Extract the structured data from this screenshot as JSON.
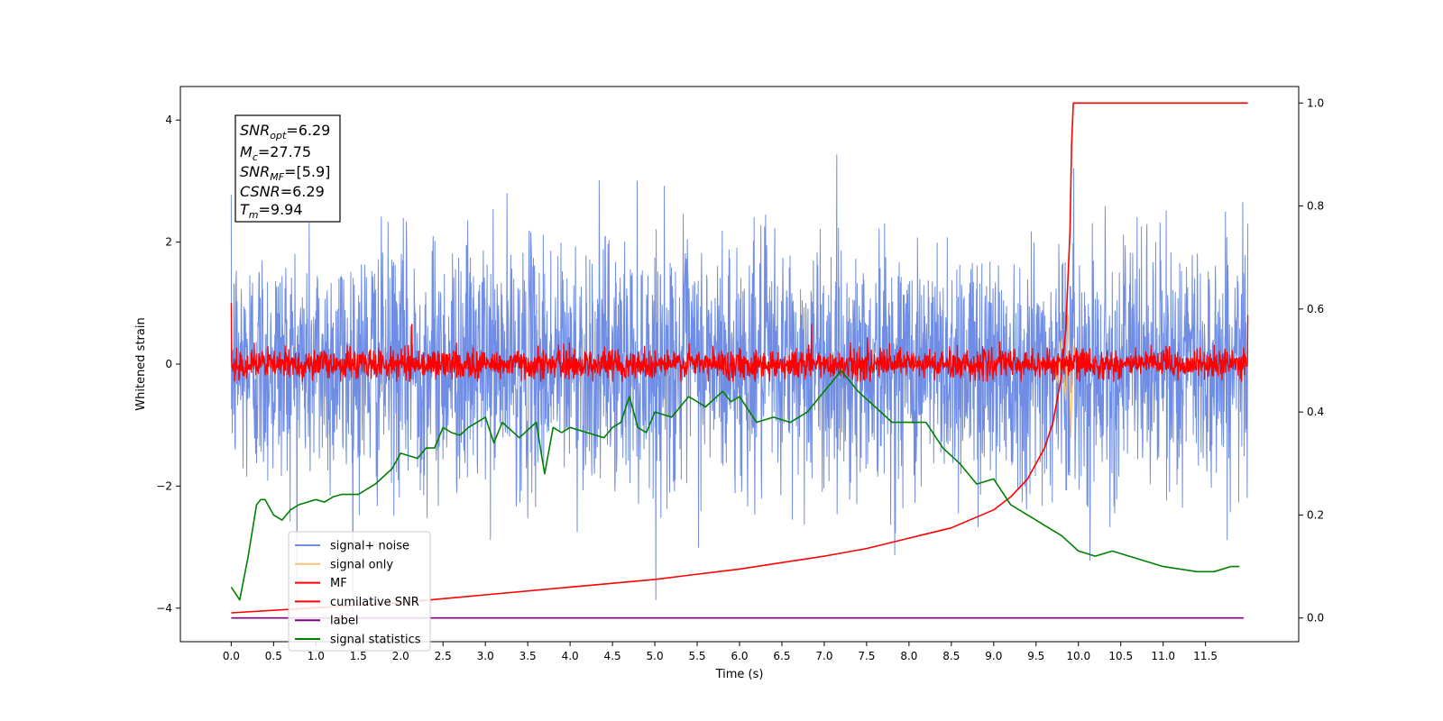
{
  "chart_data": {
    "type": "line",
    "xlabel": "Time (s)",
    "ylabel": "Whitened strain",
    "xlim": [
      -0.6,
      12.6
    ],
    "ylim": [
      -4.55,
      4.55
    ],
    "ylim_right": [
      -0.046,
      1.032
    ],
    "x_ticks": [
      "0.0",
      "0.5",
      "1.0",
      "1.5",
      "2.0",
      "2.5",
      "3.0",
      "3.5",
      "4.0",
      "4.5",
      "5.0",
      "5.5",
      "6.0",
      "6.5",
      "7.0",
      "7.5",
      "8.0",
      "8.5",
      "9.0",
      "9.5",
      "10.0",
      "10.5",
      "11.0",
      "11.5"
    ],
    "y_ticks_left": [
      "−4",
      "−2",
      "0",
      "2",
      "4"
    ],
    "y_ticks_right": [
      "0.0",
      "0.2",
      "0.4",
      "0.6",
      "0.8",
      "1.0"
    ],
    "grid": false,
    "legend_position": "lower-left",
    "annotation": {
      "lines": [
        {
          "base": "SNR",
          "sub": "opt",
          "value": "=6.29"
        },
        {
          "base": "M",
          "sub": "c",
          "value": "=27.75"
        },
        {
          "base": "SNR",
          "sub": "MF",
          "value": "=[5.9]"
        },
        {
          "base": "CSNR",
          "sub": "",
          "value": "=6.29"
        },
        {
          "base": "T",
          "sub": "m",
          "value": "=9.94"
        }
      ]
    },
    "series": [
      {
        "name": "signal+ noise",
        "color": "#6f8de4",
        "axis": "left",
        "kind": "noise",
        "x_range": [
          0,
          12
        ],
        "sigma": 1.0
      },
      {
        "name": "signal only",
        "color": "#f4c27a",
        "axis": "left",
        "kind": "chirp",
        "x": [
          9.7,
          9.75,
          9.8,
          9.85,
          9.88,
          9.91,
          9.94,
          9.96
        ],
        "y": [
          0.1,
          -0.3,
          0.4,
          -0.6,
          0.8,
          -1.2,
          0.3,
          0.0
        ]
      },
      {
        "name": "MF",
        "color": "#ff0000",
        "axis": "left",
        "kind": "mf",
        "x_range": [
          0,
          12
        ],
        "sigma": 0.12,
        "peaks": [
          {
            "x": 0.0,
            "y": 1.0
          },
          {
            "x": 2.13,
            "y": 0.65
          },
          {
            "x": 6.85,
            "y": 0.65
          },
          {
            "x": 12.0,
            "y": 0.8
          }
        ]
      },
      {
        "name": "cumilative SNR",
        "color": "#ff0000",
        "axis": "right",
        "x": [
          0.0,
          1.0,
          2.0,
          3.0,
          4.0,
          5.0,
          6.0,
          7.0,
          7.5,
          8.0,
          8.5,
          9.0,
          9.2,
          9.4,
          9.6,
          9.7,
          9.8,
          9.85,
          9.9,
          9.92,
          9.94,
          10.0,
          12.0
        ],
        "y": [
          0.01,
          0.02,
          0.03,
          0.045,
          0.06,
          0.075,
          0.095,
          0.12,
          0.135,
          0.155,
          0.175,
          0.21,
          0.235,
          0.27,
          0.33,
          0.38,
          0.47,
          0.56,
          0.75,
          0.92,
          1.0,
          1.0,
          1.0
        ]
      },
      {
        "name": "label",
        "color": "#800080",
        "axis": "right",
        "x": [
          0.0,
          11.95
        ],
        "y": [
          0.0,
          0.0
        ]
      },
      {
        "name": "signal statistics",
        "color": "#008000",
        "axis": "right",
        "x": [
          0.0,
          0.1,
          0.2,
          0.3,
          0.35,
          0.4,
          0.5,
          0.6,
          0.7,
          0.8,
          0.9,
          1.0,
          1.1,
          1.2,
          1.3,
          1.5,
          1.7,
          1.9,
          2.0,
          2.2,
          2.3,
          2.4,
          2.5,
          2.6,
          2.7,
          2.8,
          3.0,
          3.1,
          3.2,
          3.4,
          3.6,
          3.7,
          3.8,
          3.9,
          4.0,
          4.2,
          4.4,
          4.5,
          4.6,
          4.7,
          4.8,
          4.9,
          5.0,
          5.2,
          5.4,
          5.6,
          5.8,
          5.9,
          6.0,
          6.2,
          6.4,
          6.6,
          6.8,
          7.0,
          7.2,
          7.4,
          7.6,
          7.8,
          8.0,
          8.2,
          8.4,
          8.6,
          8.8,
          9.0,
          9.2,
          9.4,
          9.6,
          9.8,
          10.0,
          10.2,
          10.4,
          10.6,
          10.8,
          11.0,
          11.2,
          11.4,
          11.6,
          11.8,
          11.9
        ],
        "y": [
          0.06,
          0.035,
          0.12,
          0.22,
          0.23,
          0.23,
          0.2,
          0.19,
          0.21,
          0.22,
          0.225,
          0.23,
          0.225,
          0.235,
          0.24,
          0.24,
          0.26,
          0.29,
          0.32,
          0.31,
          0.33,
          0.33,
          0.37,
          0.36,
          0.355,
          0.37,
          0.39,
          0.34,
          0.38,
          0.35,
          0.38,
          0.28,
          0.37,
          0.36,
          0.37,
          0.36,
          0.35,
          0.37,
          0.38,
          0.43,
          0.37,
          0.36,
          0.4,
          0.39,
          0.43,
          0.41,
          0.44,
          0.42,
          0.43,
          0.38,
          0.39,
          0.38,
          0.4,
          0.44,
          0.48,
          0.44,
          0.41,
          0.38,
          0.38,
          0.38,
          0.33,
          0.3,
          0.26,
          0.27,
          0.22,
          0.2,
          0.18,
          0.16,
          0.13,
          0.12,
          0.13,
          0.12,
          0.11,
          0.1,
          0.095,
          0.09,
          0.09,
          0.1,
          0.1
        ]
      }
    ]
  }
}
